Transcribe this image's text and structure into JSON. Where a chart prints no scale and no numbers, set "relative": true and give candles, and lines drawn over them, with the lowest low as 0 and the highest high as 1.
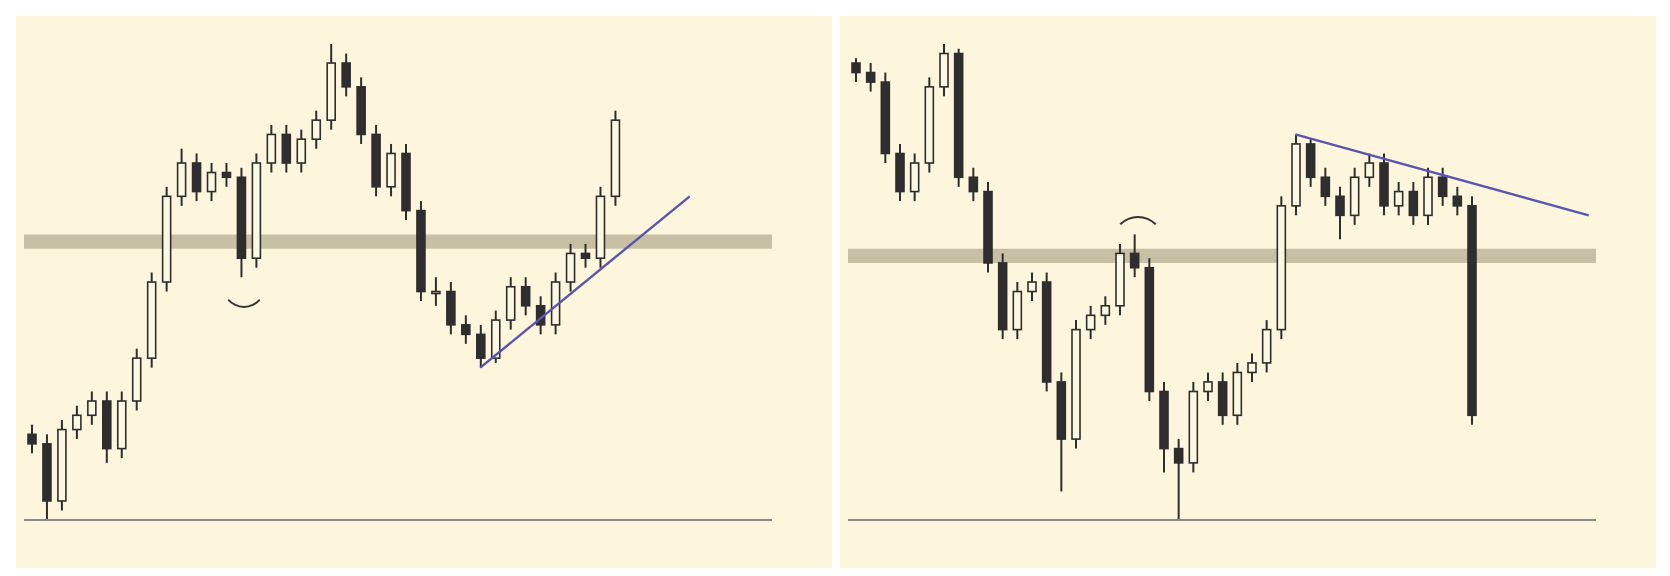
{
  "chart_data": [
    {
      "type": "candlestick",
      "relative": true,
      "legend": false,
      "grid": false,
      "categories": [
        null,
        null,
        null,
        null,
        null,
        null,
        null,
        null,
        null,
        null,
        null,
        null,
        null,
        null,
        null,
        null,
        null,
        null,
        null,
        null,
        null,
        null,
        null,
        null,
        null,
        null,
        null,
        null,
        null,
        null,
        null,
        null,
        null,
        null,
        null,
        null,
        null,
        null,
        null,
        null,
        null,
        null,
        null,
        null,
        null,
        null,
        null,
        null,
        null,
        null
      ],
      "series": [
        {
          "type": "candlestick",
          "color": "#2e2e2e",
          "ohlc": [
            [
              0.18,
              0.2,
              0.14,
              0.16
            ],
            [
              0.16,
              0.18,
              0,
              0.04
            ],
            [
              0.04,
              0.21,
              0.02,
              0.19
            ],
            [
              0.19,
              0.24,
              0.17,
              0.22
            ],
            [
              0.22,
              0.27,
              0.2,
              0.25
            ],
            [
              0.25,
              0.27,
              0.12,
              0.15
            ],
            [
              0.15,
              0.27,
              0.13,
              0.25
            ],
            [
              0.25,
              0.36,
              0.23,
              0.34
            ],
            [
              0.34,
              0.52,
              0.32,
              0.5
            ],
            [
              0.5,
              0.7,
              0.48,
              0.68
            ],
            [
              0.68,
              0.78,
              0.66,
              0.75
            ],
            [
              0.75,
              0.77,
              0.67,
              0.69
            ],
            [
              0.69,
              0.75,
              0.67,
              0.73
            ],
            [
              0.73,
              0.75,
              0.7,
              0.72
            ],
            [
              0.72,
              0.74,
              0.51,
              0.55
            ],
            [
              0.55,
              0.77,
              0.53,
              0.75
            ],
            [
              0.75,
              0.83,
              0.73,
              0.81
            ],
            [
              0.81,
              0.83,
              0.73,
              0.75
            ],
            [
              0.75,
              0.82,
              0.73,
              0.8
            ],
            [
              0.8,
              0.86,
              0.78,
              0.84
            ],
            [
              0.84,
              1,
              0.82,
              0.96
            ],
            [
              0.96,
              0.98,
              0.89,
              0.91
            ],
            [
              0.91,
              0.93,
              0.79,
              0.81
            ],
            [
              0.81,
              0.83,
              0.68,
              0.7
            ],
            [
              0.7,
              0.79,
              0.68,
              0.77
            ],
            [
              0.77,
              0.79,
              0.63,
              0.65
            ],
            [
              0.65,
              0.67,
              0.46,
              0.48
            ],
            [
              0.48,
              0.51,
              0.45,
              0.48
            ],
            [
              0.48,
              0.5,
              0.39,
              0.41
            ],
            [
              0.41,
              0.43,
              0.37,
              0.39
            ],
            [
              0.39,
              0.41,
              0.32,
              0.34
            ],
            [
              0.34,
              0.44,
              0.33,
              0.42
            ],
            [
              0.42,
              0.51,
              0.4,
              0.49
            ],
            [
              0.49,
              0.51,
              0.43,
              0.45
            ],
            [
              0.45,
              0.47,
              0.39,
              0.41
            ],
            [
              0.41,
              0.52,
              0.39,
              0.5
            ],
            [
              0.5,
              0.58,
              0.48,
              0.56
            ],
            [
              0.56,
              0.58,
              0.53,
              0.55
            ],
            [
              0.55,
              0.7,
              0.53,
              0.68
            ],
            [
              0.68,
              0.86,
              0.66,
              0.84
            ],
            null,
            null,
            null,
            null,
            null,
            null,
            null,
            null,
            null,
            null
          ]
        },
        {
          "type": "line",
          "color": "#5a54b0",
          "line_style": "solid",
          "values": [
            null,
            null,
            null,
            null,
            null,
            null,
            null,
            null,
            null,
            null,
            null,
            null,
            null,
            null,
            null,
            null,
            null,
            null,
            null,
            null,
            null,
            null,
            null,
            null,
            null,
            null,
            null,
            null,
            null,
            null,
            0.32,
            null,
            null,
            null,
            null,
            null,
            null,
            null,
            null,
            null,
            null,
            null,
            null,
            null,
            0.68,
            null,
            null,
            null,
            null,
            null
          ]
        }
      ],
      "bands": [
        {
          "axis": "y",
          "from": 0.57,
          "to": 0.6,
          "color": "#c8c0a4"
        }
      ]
    },
    {
      "type": "candlestick",
      "relative": true,
      "legend": false,
      "grid": false,
      "categories": [
        null,
        null,
        null,
        null,
        null,
        null,
        null,
        null,
        null,
        null,
        null,
        null,
        null,
        null,
        null,
        null,
        null,
        null,
        null,
        null,
        null,
        null,
        null,
        null,
        null,
        null,
        null,
        null,
        null,
        null,
        null,
        null,
        null,
        null,
        null,
        null,
        null,
        null,
        null,
        null,
        null,
        null,
        null,
        null,
        null,
        null,
        null,
        null,
        null,
        null,
        null
      ],
      "series": [
        {
          "type": "candlestick",
          "color": "#2e2e2e",
          "ohlc": [
            [
              0.96,
              0.97,
              0.92,
              0.94
            ],
            [
              0.94,
              0.96,
              0.9,
              0.92
            ],
            [
              0.92,
              0.94,
              0.75,
              0.77
            ],
            [
              0.77,
              0.79,
              0.67,
              0.69
            ],
            [
              0.69,
              0.77,
              0.67,
              0.75
            ],
            [
              0.75,
              0.93,
              0.73,
              0.91
            ],
            [
              0.91,
              1,
              0.89,
              0.98
            ],
            [
              0.98,
              0.99,
              0.7,
              0.72
            ],
            [
              0.72,
              0.74,
              0.67,
              0.69
            ],
            [
              0.69,
              0.71,
              0.52,
              0.54
            ],
            [
              0.54,
              0.56,
              0.38,
              0.4
            ],
            [
              0.4,
              0.5,
              0.38,
              0.48
            ],
            [
              0.48,
              0.52,
              0.46,
              0.5
            ],
            [
              0.5,
              0.52,
              0.27,
              0.29
            ],
            [
              0.29,
              0.31,
              0.06,
              0.17
            ],
            [
              0.17,
              0.42,
              0.15,
              0.4
            ],
            [
              0.4,
              0.45,
              0.38,
              0.43
            ],
            [
              0.43,
              0.47,
              0.41,
              0.45
            ],
            [
              0.45,
              0.58,
              0.43,
              0.56
            ],
            [
              0.56,
              0.6,
              0.51,
              0.53
            ],
            [
              0.53,
              0.55,
              0.25,
              0.27
            ],
            [
              0.27,
              0.29,
              0.1,
              0.15
            ],
            [
              0.15,
              0.17,
              0,
              0.12
            ],
            [
              0.12,
              0.29,
              0.1,
              0.27
            ],
            [
              0.27,
              0.31,
              0.25,
              0.29
            ],
            [
              0.29,
              0.31,
              0.2,
              0.22
            ],
            [
              0.22,
              0.33,
              0.2,
              0.31
            ],
            [
              0.31,
              0.35,
              0.29,
              0.33
            ],
            [
              0.33,
              0.42,
              0.31,
              0.4
            ],
            [
              0.4,
              0.68,
              0.38,
              0.66
            ],
            [
              0.66,
              0.81,
              0.64,
              0.79
            ],
            [
              0.79,
              0.8,
              0.7,
              0.72
            ],
            [
              0.72,
              0.74,
              0.66,
              0.68
            ],
            [
              0.68,
              0.7,
              0.59,
              0.64
            ],
            [
              0.64,
              0.74,
              0.62,
              0.72
            ],
            [
              0.72,
              0.77,
              0.7,
              0.75
            ],
            [
              0.75,
              0.77,
              0.64,
              0.66
            ],
            [
              0.66,
              0.71,
              0.64,
              0.69
            ],
            [
              0.69,
              0.71,
              0.62,
              0.64
            ],
            [
              0.64,
              0.74,
              0.62,
              0.72
            ],
            [
              0.72,
              0.74,
              0.66,
              0.68
            ],
            [
              0.68,
              0.7,
              0.64,
              0.66
            ],
            [
              0.66,
              0.68,
              0.2,
              0.22
            ],
            null,
            null,
            null,
            null,
            null,
            null,
            null,
            null
          ]
        },
        {
          "type": "line",
          "color": "#5a54b0",
          "line_style": "solid",
          "values": [
            null,
            null,
            null,
            null,
            null,
            null,
            null,
            null,
            null,
            null,
            null,
            null,
            null,
            null,
            null,
            null,
            null,
            null,
            null,
            null,
            null,
            null,
            null,
            null,
            null,
            null,
            null,
            null,
            null,
            null,
            0.81,
            null,
            null,
            null,
            null,
            null,
            null,
            null,
            null,
            null,
            null,
            null,
            null,
            null,
            null,
            null,
            null,
            null,
            null,
            null,
            0.64
          ]
        }
      ],
      "bands": [
        {
          "axis": "y",
          "from": 0.54,
          "to": 0.57,
          "color": "#c8c0a4"
        }
      ]
    }
  ]
}
